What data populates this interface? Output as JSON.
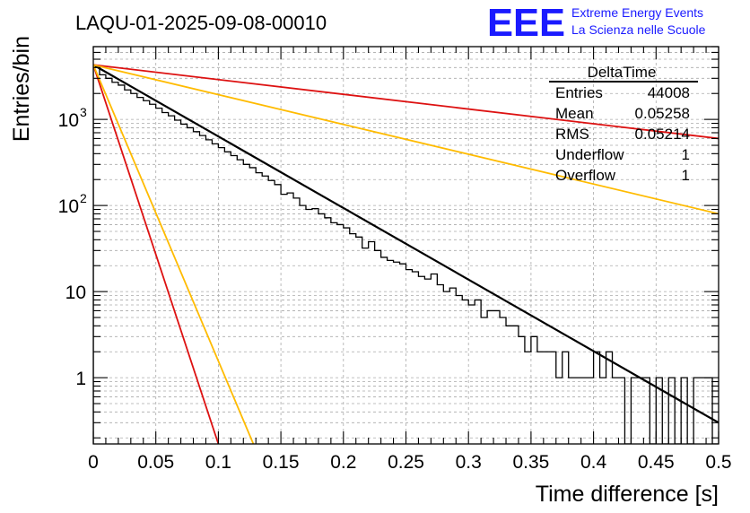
{
  "header": {
    "run_title": "LAQU-01-2025-09-08-00010",
    "logo_text": "EEE",
    "logo_line1": "Extreme Energy Events",
    "logo_line2": "La Scienza nelle Scuole",
    "brand_color": "#1a1aff"
  },
  "stats_box": {
    "title": "DeltaTime",
    "rows": [
      {
        "label": "Entries",
        "value": "44008"
      },
      {
        "label": "Mean",
        "value": "0.05258"
      },
      {
        "label": "RMS",
        "value": "0.05214"
      },
      {
        "label": "Underflow",
        "value": "1"
      },
      {
        "label": "Overflow",
        "value": "1"
      }
    ]
  },
  "chart_data": {
    "type": "line",
    "title": "LAQU-01-2025-09-08-00010",
    "xlabel": "Time difference [s]",
    "ylabel": "Entries/bin",
    "yscale": "log",
    "xlim": [
      0,
      0.5
    ],
    "ylim": [
      0.17,
      7000
    ],
    "grid": true,
    "x_ticks": [
      {
        "v": 0,
        "label": "0"
      },
      {
        "v": 0.05,
        "label": "0.05"
      },
      {
        "v": 0.1,
        "label": "0.1"
      },
      {
        "v": 0.15,
        "label": "0.15"
      },
      {
        "v": 0.2,
        "label": "0.2"
      },
      {
        "v": 0.25,
        "label": "0.25"
      },
      {
        "v": 0.3,
        "label": "0.3"
      },
      {
        "v": 0.35,
        "label": "0.35"
      },
      {
        "v": 0.4,
        "label": "0.4"
      },
      {
        "v": 0.45,
        "label": "0.45"
      },
      {
        "v": 0.5,
        "label": "0.5"
      }
    ],
    "y_ticks": [
      {
        "v": 1,
        "base": "1",
        "exp": ""
      },
      {
        "v": 10,
        "base": "10",
        "exp": ""
      },
      {
        "v": 100,
        "base": "10",
        "exp": "2"
      },
      {
        "v": 1000,
        "base": "10",
        "exp": "3"
      }
    ],
    "histogram": {
      "name": "DeltaTime",
      "color": "#000000",
      "bin_width": 0.005,
      "x_start": 0,
      "values": [
        4000,
        3300,
        3000,
        2700,
        2500,
        2200,
        2000,
        1800,
        1650,
        1500,
        1350,
        1200,
        1100,
        980,
        880,
        800,
        720,
        650,
        580,
        520,
        470,
        420,
        380,
        340,
        300,
        275,
        240,
        220,
        195,
        175,
        135,
        140,
        122,
        100,
        90,
        92,
        80,
        72,
        63,
        60,
        55,
        47,
        43,
        32,
        38,
        30,
        25,
        23,
        22,
        21,
        18,
        17,
        15,
        14,
        16,
        12,
        10,
        11,
        9,
        8,
        7,
        8,
        5,
        6,
        6,
        5,
        4,
        4,
        3,
        2,
        3,
        2,
        2,
        2,
        1,
        2,
        1,
        1,
        1,
        1,
        2,
        1,
        2,
        1,
        1,
        0,
        1,
        1,
        1,
        0,
        1,
        0,
        1,
        0,
        1,
        0,
        1,
        1,
        1,
        0
      ]
    },
    "lines": [
      {
        "name": "fit",
        "color": "#000000",
        "x": [
          0,
          0.5
        ],
        "y": [
          4300,
          0.3
        ],
        "width": 2.2
      },
      {
        "name": "red slow",
        "color": "#dd1111",
        "x": [
          0,
          0.5
        ],
        "y": [
          4300,
          600
        ],
        "width": 1.8
      },
      {
        "name": "orange slow",
        "color": "#ffbb00",
        "x": [
          0,
          0.5
        ],
        "y": [
          4300,
          80
        ],
        "width": 1.8
      },
      {
        "name": "red fast",
        "color": "#dd1111",
        "x": [
          0,
          0.1
        ],
        "y": [
          4300,
          0.17
        ],
        "width": 1.8
      },
      {
        "name": "orange fast",
        "color": "#ffbb00",
        "x": [
          0,
          0.128
        ],
        "y": [
          4300,
          0.17
        ],
        "width": 1.8
      }
    ]
  }
}
